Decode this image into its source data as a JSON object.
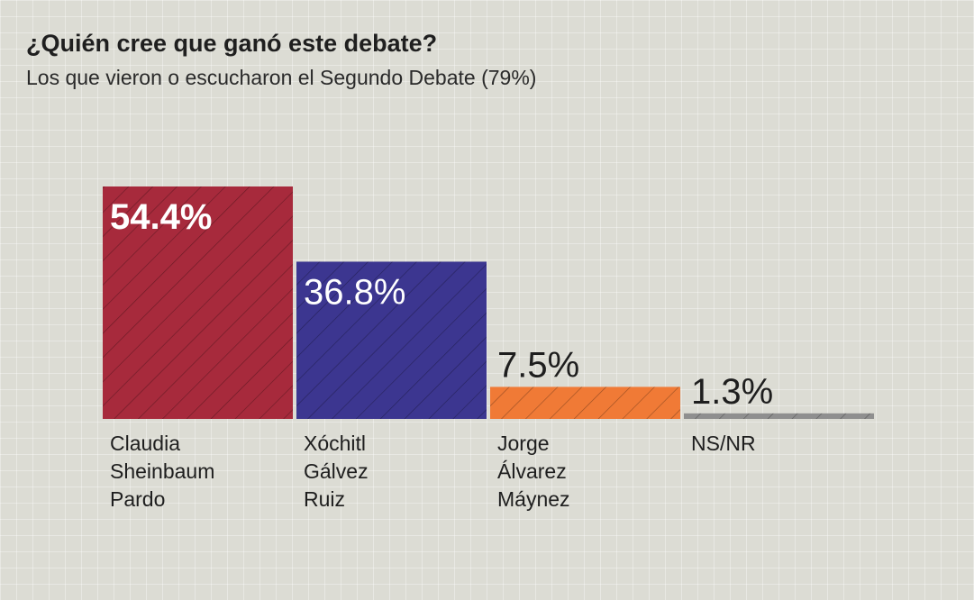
{
  "chart_data": {
    "type": "bar",
    "title": "¿Quién cree que ganó este debate?",
    "subtitle": "Los que vieron o escucharon el Segundo Debate (79%)",
    "categories": [
      [
        "Claudia",
        "Sheinbaum",
        "Pardo"
      ],
      [
        "Xóchitl",
        "Gálvez",
        "Ruiz"
      ],
      [
        "Jorge",
        "Álvarez",
        "Máynez"
      ],
      [
        "NS/NR"
      ]
    ],
    "values": [
      54.4,
      36.8,
      7.5,
      1.3
    ],
    "value_labels": [
      "54.4%",
      "36.8%",
      "7.5%",
      "1.3%"
    ],
    "colors": [
      "#a72a3c",
      "#3c3690",
      "#f07a36",
      "#8f8f8f"
    ],
    "label_colors": [
      "#ffffff",
      "#ffffff",
      "#1e1e1e",
      "#1e1e1e"
    ],
    "ylim": [
      0,
      60
    ],
    "xlabel": "",
    "ylabel": ""
  }
}
